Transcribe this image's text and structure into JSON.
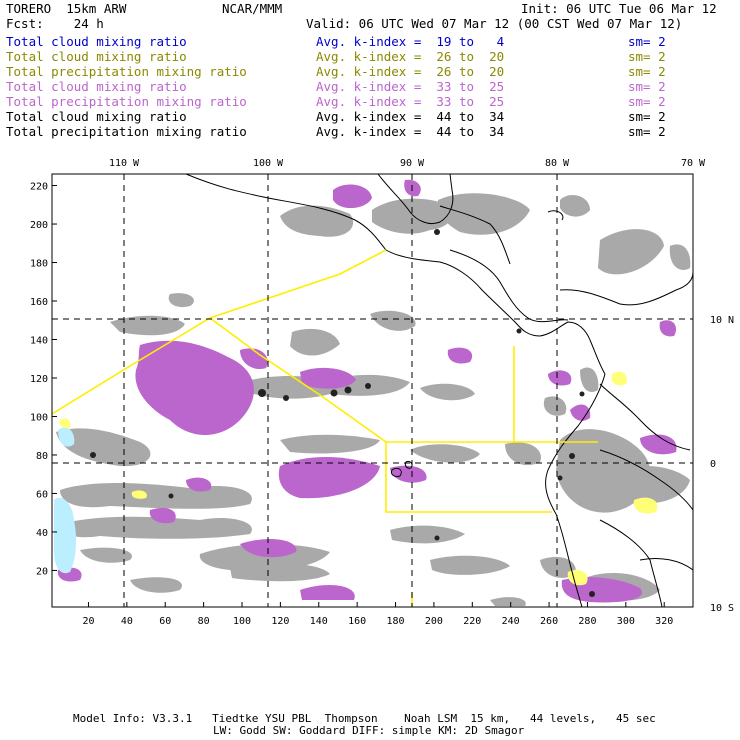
{
  "header": {
    "model": "TORERO  15km ARW",
    "org": "NCAR/MMM",
    "init": "Init: 06 UTC Tue 06 Mar 12",
    "fcst": "Fcst:    24 h",
    "valid": "Valid: 06 UTC Wed 07 Mar 12 (00 CST Wed 07 Mar 12)"
  },
  "legend": [
    {
      "field": "Total cloud mixing ratio",
      "index": "Avg. k-index =  19 to   4",
      "sm": "sm= 2",
      "color": "#0000cc"
    },
    {
      "field": "Total cloud mixing ratio",
      "index": "Avg. k-index =  26 to  20",
      "sm": "sm= 2",
      "color": "#8a8a00"
    },
    {
      "field": "Total precipitation mixing ratio",
      "index": "Avg. k-index =  26 to  20",
      "sm": "sm= 2",
      "color": "#8a8a00"
    },
    {
      "field": "Total cloud mixing ratio",
      "index": "Avg. k-index =  33 to  25",
      "sm": "sm= 2",
      "color": "#bb66cc"
    },
    {
      "field": "Total precipitation mixing ratio",
      "index": "Avg. k-index =  33 to  25",
      "sm": "sm= 2",
      "color": "#bb66cc"
    },
    {
      "field": "Total cloud mixing ratio",
      "index": "Avg. k-index =  44 to  34",
      "sm": "sm= 2",
      "color": "#000000"
    },
    {
      "field": "Total precipitation mixing ratio",
      "index": "Avg. k-index =  44 to  34",
      "sm": "sm= 2",
      "color": "#000000"
    }
  ],
  "map": {
    "lon_labels": [
      "110 W",
      "100 W",
      "90 W",
      "80 W",
      "70 W"
    ],
    "lat_labels": [
      "10 N",
      "0",
      "10 S"
    ],
    "x_ticks": [
      "20",
      "40",
      "60",
      "80",
      "100",
      "120",
      "140",
      "160",
      "180",
      "200",
      "220",
      "240",
      "260",
      "280",
      "300",
      "320"
    ],
    "y_ticks": [
      "220",
      "200",
      "180",
      "160",
      "140",
      "120",
      "100",
      "80",
      "60",
      "40",
      "20"
    ],
    "x_grid_range": [
      1,
      335
    ],
    "y_grid_range": [
      1,
      226
    ],
    "colors": {
      "gray_cloud": "#a9a9a9",
      "purple_cloud": "#bb66cc",
      "yellow_cloud": "#ffff77",
      "cyan_cloud": "#bbeeff",
      "dark_core": "#222222",
      "boundary_line": "#ffee00"
    }
  },
  "footer": {
    "line1": "Model Info: V3.3.1   Tiedtke YSU PBL  Thompson    Noah LSM  15 km,   44 levels,   45 sec",
    "line2": "LW: Godd SW: Goddard DIFF: simple KM: 2D Smagor"
  }
}
